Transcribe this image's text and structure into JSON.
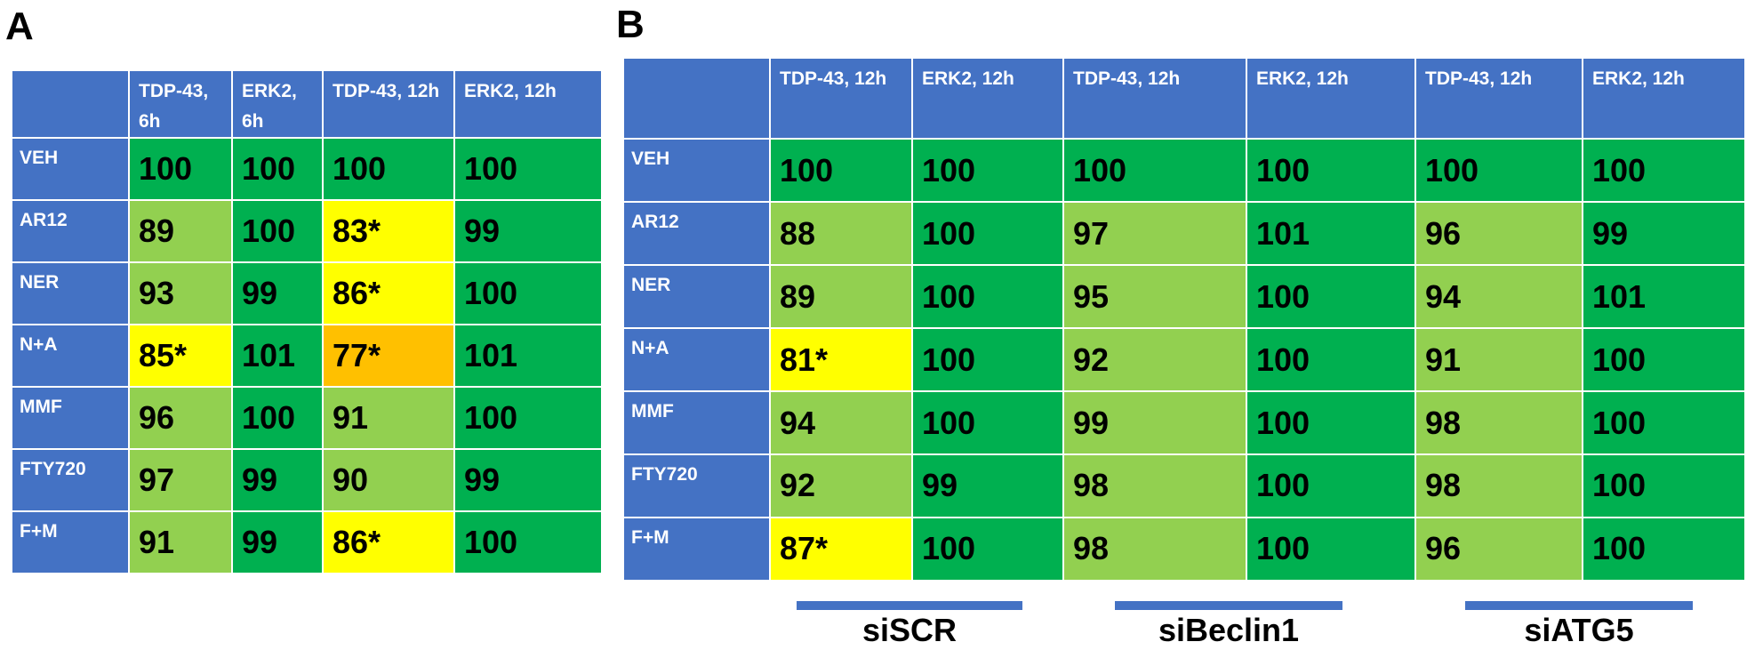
{
  "panels": [
    {
      "letter": "A",
      "columns": [
        "TDP-43, 6h",
        "ERK2, 6h",
        "TDP-43, 12h",
        "ERK2, 12h"
      ],
      "rows": [
        {
          "label": "VEH",
          "values": [
            "100",
            "100",
            "100",
            "100"
          ],
          "colors": [
            "dark",
            "dark",
            "dark",
            "dark"
          ]
        },
        {
          "label": "AR12",
          "values": [
            "89",
            "100",
            "83*",
            "99"
          ],
          "colors": [
            "light",
            "dark",
            "yellow",
            "dark"
          ]
        },
        {
          "label": "NER",
          "values": [
            "93",
            "99",
            "86*",
            "100"
          ],
          "colors": [
            "light",
            "dark",
            "yellow",
            "dark"
          ]
        },
        {
          "label": "N+A",
          "values": [
            "85*",
            "101",
            "77*",
            "101"
          ],
          "colors": [
            "yellow",
            "dark",
            "orange",
            "dark"
          ]
        },
        {
          "label": "MMF",
          "values": [
            "96",
            "100",
            "91",
            "100"
          ],
          "colors": [
            "light",
            "dark",
            "light",
            "dark"
          ]
        },
        {
          "label": "FTY720",
          "values": [
            "97",
            "99",
            "90",
            "99"
          ],
          "colors": [
            "light",
            "dark",
            "light",
            "dark"
          ]
        },
        {
          "label": "F+M",
          "values": [
            "91",
            "99",
            "86*",
            "100"
          ],
          "colors": [
            "light",
            "dark",
            "yellow",
            "dark"
          ]
        }
      ]
    },
    {
      "letter": "B",
      "columns": [
        "TDP-43, 12h",
        "ERK2, 12h",
        "TDP-43, 12h",
        "ERK2, 12h",
        "TDP-43, 12h",
        "ERK2, 12h"
      ],
      "rows": [
        {
          "label": "VEH",
          "values": [
            "100",
            "100",
            "100",
            "100",
            "100",
            "100"
          ],
          "colors": [
            "dark",
            "dark",
            "dark",
            "dark",
            "dark",
            "dark"
          ]
        },
        {
          "label": "AR12",
          "values": [
            "88",
            "100",
            "97",
            "101",
            "96",
            "99"
          ],
          "colors": [
            "light",
            "dark",
            "light",
            "dark",
            "light",
            "dark"
          ]
        },
        {
          "label": "NER",
          "values": [
            "89",
            "100",
            "95",
            "100",
            "94",
            "101"
          ],
          "colors": [
            "light",
            "dark",
            "light",
            "dark",
            "light",
            "dark"
          ]
        },
        {
          "label": "N+A",
          "values": [
            "81*",
            "100",
            "92",
            "100",
            "91",
            "100"
          ],
          "colors": [
            "yellow",
            "dark",
            "light",
            "dark",
            "light",
            "dark"
          ]
        },
        {
          "label": "MMF",
          "values": [
            "94",
            "100",
            "99",
            "100",
            "98",
            "100"
          ],
          "colors": [
            "light",
            "dark",
            "light",
            "dark",
            "light",
            "dark"
          ]
        },
        {
          "label": "FTY720",
          "values": [
            "92",
            "99",
            "98",
            "100",
            "98",
            "100"
          ],
          "colors": [
            "light",
            "dark",
            "light",
            "dark",
            "light",
            "dark"
          ]
        },
        {
          "label": "F+M",
          "values": [
            "87*",
            "100",
            "98",
            "100",
            "96",
            "100"
          ],
          "colors": [
            "yellow",
            "dark",
            "light",
            "dark",
            "light",
            "dark"
          ]
        }
      ],
      "groups": [
        "siSCR",
        "siBeclin1",
        "siATG5"
      ]
    }
  ],
  "colors": {
    "header": "#4472c4",
    "dark": "#00b050",
    "light": "#92d050",
    "yellow": "#ffff00",
    "orange": "#ffc000"
  },
  "chart_data": [
    {
      "type": "heatmap",
      "columns": [
        "TDP-43, 6h",
        "ERK2, 6h",
        "TDP-43, 12h",
        "ERK2, 12h"
      ],
      "rows": [
        "VEH",
        "AR12",
        "NER",
        "N+A",
        "MMF",
        "FTY720",
        "F+M"
      ],
      "values": [
        [
          "100",
          "100",
          "100",
          "100"
        ],
        [
          "89",
          "100",
          "83*",
          "99"
        ],
        [
          "93",
          "99",
          "86*",
          "100"
        ],
        [
          "85*",
          "101",
          "77*",
          "101"
        ],
        [
          "96",
          "100",
          "91",
          "100"
        ],
        [
          "97",
          "99",
          "90",
          "99"
        ],
        [
          "91",
          "99",
          "86*",
          "100"
        ]
      ]
    },
    {
      "type": "heatmap",
      "columns": [
        "TDP-43, 12h",
        "ERK2, 12h",
        "TDP-43, 12h",
        "ERK2, 12h",
        "TDP-43, 12h",
        "ERK2, 12h"
      ],
      "column_groups": [
        "siSCR",
        "siBeclin1",
        "siATG5"
      ],
      "rows": [
        "VEH",
        "AR12",
        "NER",
        "N+A",
        "MMF",
        "FTY720",
        "F+M"
      ],
      "values": [
        [
          "100",
          "100",
          "100",
          "100",
          "100",
          "100"
        ],
        [
          "88",
          "100",
          "97",
          "101",
          "96",
          "99"
        ],
        [
          "89",
          "100",
          "95",
          "100",
          "94",
          "101"
        ],
        [
          "81*",
          "100",
          "92",
          "100",
          "91",
          "100"
        ],
        [
          "94",
          "100",
          "99",
          "100",
          "98",
          "100"
        ],
        [
          "92",
          "99",
          "98",
          "100",
          "98",
          "100"
        ],
        [
          "87*",
          "100",
          "98",
          "100",
          "96",
          "100"
        ]
      ]
    }
  ]
}
